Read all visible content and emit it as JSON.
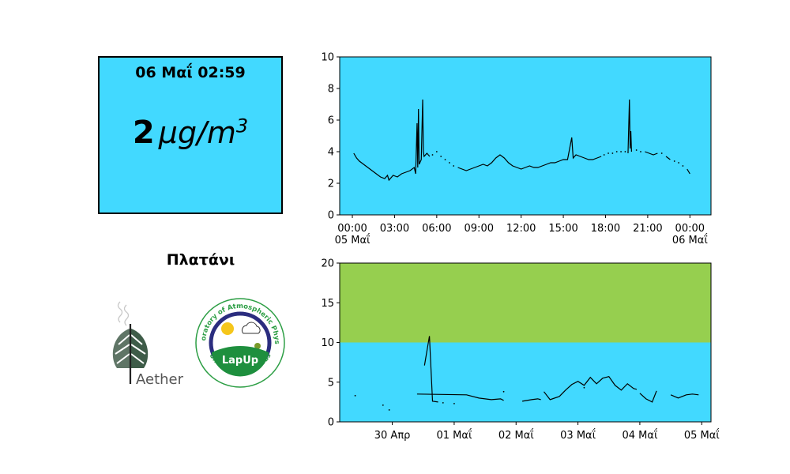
{
  "box": {
    "time": "06 Μαΐ 02:59",
    "value": "2",
    "unit_base": "μg/m",
    "unit_exp": "3",
    "background": "#42d9ff"
  },
  "station": {
    "name": "Πλατάνι"
  },
  "logos": {
    "aether": {
      "text": "Aether"
    },
    "lapup": {
      "center_text": "LapUp",
      "ring_text_top": "Laboratory of Atmospheric Physics",
      "ring_text_bottom": "University of Patras"
    }
  },
  "chart_data": [
    {
      "type": "line",
      "x_unit": "hours from 05 Μαΐ 00:00",
      "xlim": [
        -0.9,
        25.5
      ],
      "ylim": [
        0,
        10
      ],
      "y_ticks": [
        0,
        2,
        4,
        6,
        8,
        10
      ],
      "x_ticks": [
        {
          "x": 0,
          "label": "00:00",
          "sub": "05 Μαΐ"
        },
        {
          "x": 3,
          "label": "03:00",
          "sub": ""
        },
        {
          "x": 6,
          "label": "06:00",
          "sub": ""
        },
        {
          "x": 9,
          "label": "09:00",
          "sub": ""
        },
        {
          "x": 12,
          "label": "12:00",
          "sub": ""
        },
        {
          "x": 15,
          "label": "15:00",
          "sub": ""
        },
        {
          "x": 18,
          "label": "18:00",
          "sub": ""
        },
        {
          "x": 21,
          "label": "21:00",
          "sub": ""
        },
        {
          "x": 24,
          "label": "00:00",
          "sub": "06 Μαΐ"
        }
      ],
      "background": "#42d9ff",
      "line_color": "#000000",
      "segments": [
        [
          [
            0.1,
            3.9
          ],
          [
            0.3,
            3.6
          ],
          [
            0.5,
            3.4
          ],
          [
            0.8,
            3.2
          ],
          [
            1.1,
            3.0
          ],
          [
            1.4,
            2.8
          ],
          [
            1.7,
            2.6
          ],
          [
            2.0,
            2.4
          ],
          [
            2.3,
            2.3
          ],
          [
            2.5,
            2.5
          ],
          [
            2.6,
            2.2
          ],
          [
            2.9,
            2.5
          ],
          [
            3.2,
            2.4
          ],
          [
            3.5,
            2.6
          ],
          [
            3.8,
            2.7
          ],
          [
            4.1,
            2.8
          ],
          [
            4.4,
            3.0
          ],
          [
            4.5,
            2.6
          ],
          [
            4.6,
            5.8
          ],
          [
            4.65,
            3.0
          ],
          [
            4.7,
            6.7
          ],
          [
            4.75,
            3.2
          ],
          [
            4.9,
            3.5
          ],
          [
            5.0,
            7.3
          ],
          [
            5.05,
            4.0
          ],
          [
            5.1,
            3.7
          ],
          [
            5.3,
            3.9
          ],
          [
            5.5,
            3.7
          ]
        ],
        [
          [
            7.5,
            3.0
          ],
          [
            7.8,
            2.9
          ],
          [
            8.1,
            2.8
          ],
          [
            8.4,
            2.9
          ],
          [
            8.7,
            3.0
          ],
          [
            9.0,
            3.1
          ],
          [
            9.3,
            3.2
          ],
          [
            9.6,
            3.1
          ],
          [
            9.9,
            3.3
          ],
          [
            10.2,
            3.6
          ],
          [
            10.5,
            3.8
          ],
          [
            10.8,
            3.6
          ],
          [
            11.1,
            3.3
          ],
          [
            11.4,
            3.1
          ],
          [
            11.7,
            3.0
          ],
          [
            12.0,
            2.9
          ],
          [
            12.3,
            3.0
          ],
          [
            12.6,
            3.1
          ],
          [
            12.9,
            3.0
          ],
          [
            13.2,
            3.0
          ],
          [
            13.5,
            3.1
          ],
          [
            13.8,
            3.2
          ],
          [
            14.1,
            3.3
          ],
          [
            14.4,
            3.3
          ],
          [
            14.7,
            3.4
          ],
          [
            15.0,
            3.5
          ],
          [
            15.3,
            3.5
          ],
          [
            15.6,
            4.9
          ],
          [
            15.7,
            3.6
          ],
          [
            15.9,
            3.8
          ],
          [
            16.2,
            3.7
          ],
          [
            16.5,
            3.6
          ],
          [
            16.8,
            3.5
          ],
          [
            17.1,
            3.5
          ],
          [
            17.4,
            3.6
          ],
          [
            17.7,
            3.7
          ]
        ],
        [
          [
            19.6,
            3.9
          ],
          [
            19.7,
            7.3
          ],
          [
            19.75,
            4.2
          ],
          [
            19.8,
            5.3
          ],
          [
            19.85,
            4.0
          ]
        ],
        [
          [
            20.8,
            4.0
          ],
          [
            21.1,
            3.9
          ],
          [
            21.4,
            3.8
          ],
          [
            21.7,
            3.9
          ]
        ],
        [
          [
            22.3,
            3.7
          ],
          [
            22.6,
            3.5
          ]
        ],
        [
          [
            23.8,
            2.9
          ],
          [
            24.0,
            2.6
          ]
        ]
      ],
      "points": [
        [
          5.7,
          3.8
        ],
        [
          6.0,
          4.0
        ],
        [
          6.3,
          3.7
        ],
        [
          6.6,
          3.5
        ],
        [
          6.9,
          3.3
        ],
        [
          7.2,
          3.1
        ],
        [
          17.9,
          3.8
        ],
        [
          18.2,
          3.9
        ],
        [
          18.5,
          3.9
        ],
        [
          18.8,
          4.0
        ],
        [
          19.1,
          4.0
        ],
        [
          19.4,
          4.0
        ],
        [
          20.2,
          4.1
        ],
        [
          20.5,
          4.0
        ],
        [
          22.0,
          3.9
        ],
        [
          22.9,
          3.4
        ],
        [
          23.2,
          3.3
        ],
        [
          23.5,
          3.1
        ]
      ]
    },
    {
      "type": "line",
      "x_unit": "days from 30 Απρ",
      "xlim": [
        -0.85,
        5.15
      ],
      "ylim": [
        0,
        20
      ],
      "y_ticks": [
        0,
        5,
        10,
        15,
        20
      ],
      "x_ticks": [
        {
          "x": 0,
          "label": "30 Απρ"
        },
        {
          "x": 1,
          "label": "01 Μαΐ"
        },
        {
          "x": 2,
          "label": "02 Μαΐ"
        },
        {
          "x": 3,
          "label": "03 Μαΐ"
        },
        {
          "x": 4,
          "label": "04 Μαΐ"
        },
        {
          "x": 5,
          "label": "05 Μαΐ"
        }
      ],
      "bands": [
        {
          "from": 0,
          "to": 10,
          "color": "#42d9ff"
        },
        {
          "from": 10,
          "to": 20,
          "color": "#96cf4f"
        }
      ],
      "line_color": "#000000",
      "segments": [
        [
          [
            0.52,
            7.1
          ],
          [
            0.6,
            10.8
          ],
          [
            0.65,
            2.6
          ],
          [
            0.74,
            2.5
          ]
        ],
        [
          [
            0.4,
            3.5
          ],
          [
            1.2,
            3.4
          ],
          [
            1.4,
            3.0
          ],
          [
            1.6,
            2.8
          ],
          [
            1.75,
            2.9
          ],
          [
            1.8,
            2.7
          ]
        ],
        [
          [
            2.1,
            2.6
          ],
          [
            2.25,
            2.8
          ],
          [
            2.35,
            2.9
          ],
          [
            2.4,
            2.8
          ]
        ],
        [
          [
            2.45,
            3.8
          ],
          [
            2.55,
            2.8
          ],
          [
            2.7,
            3.2
          ],
          [
            2.8,
            4.0
          ],
          [
            2.9,
            4.7
          ],
          [
            3.0,
            5.1
          ],
          [
            3.1,
            4.6
          ],
          [
            3.2,
            5.6
          ],
          [
            3.3,
            4.8
          ],
          [
            3.4,
            5.5
          ],
          [
            3.5,
            5.7
          ],
          [
            3.6,
            4.6
          ],
          [
            3.7,
            4.0
          ],
          [
            3.8,
            4.8
          ],
          [
            3.9,
            4.2
          ],
          [
            3.95,
            4.1
          ]
        ],
        [
          [
            4.0,
            3.6
          ],
          [
            4.1,
            2.9
          ],
          [
            4.2,
            2.5
          ],
          [
            4.27,
            3.9
          ]
        ],
        [
          [
            4.5,
            3.4
          ],
          [
            4.62,
            3.0
          ],
          [
            4.75,
            3.4
          ],
          [
            4.85,
            3.5
          ],
          [
            4.95,
            3.4
          ]
        ]
      ],
      "points": [
        [
          -0.6,
          3.3
        ],
        [
          -0.15,
          2.1
        ],
        [
          -0.05,
          1.5
        ],
        [
          0.82,
          2.4
        ],
        [
          1.0,
          2.3
        ],
        [
          1.8,
          3.8
        ],
        [
          3.1,
          4.3
        ]
      ]
    }
  ]
}
